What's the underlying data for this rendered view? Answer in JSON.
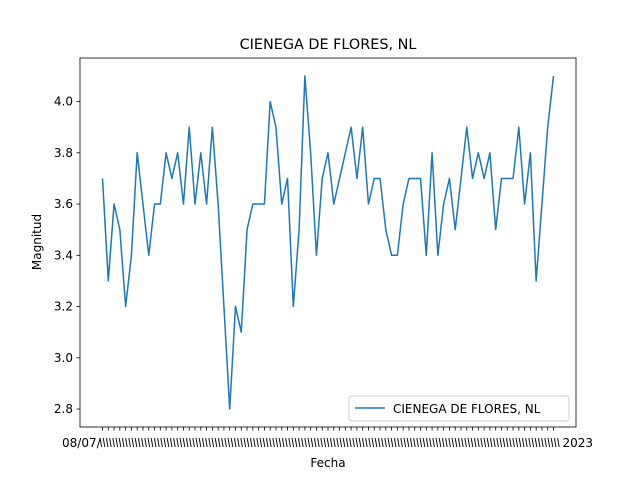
{
  "chart_data": {
    "type": "line",
    "title": "CIENEGA DE FLORES, NL",
    "xlabel": "Fecha",
    "ylabel": "Magnitud",
    "ylim": [
      2.73,
      4.17
    ],
    "yticks": [
      2.8,
      3.0,
      3.2,
      3.4,
      3.6,
      3.8,
      4.0
    ],
    "ytick_labels": [
      "2.8",
      "3.0",
      "3.2",
      "3.4",
      "3.6",
      "3.8",
      "4.0"
    ],
    "xtick_label_first": "08/07/",
    "xtick_label_last": "2023",
    "grid": false,
    "legend_location": "lower right",
    "series": [
      {
        "name": "CIENEGA DE FLORES, NL",
        "color": "#1f77b4",
        "values": [
          3.7,
          3.3,
          3.6,
          3.5,
          3.2,
          3.4,
          3.8,
          3.6,
          3.4,
          3.6,
          3.6,
          3.8,
          3.7,
          3.8,
          3.6,
          3.9,
          3.6,
          3.8,
          3.6,
          3.9,
          3.6,
          3.2,
          2.8,
          3.2,
          3.1,
          3.5,
          3.6,
          3.6,
          3.6,
          4.0,
          3.9,
          3.6,
          3.7,
          3.2,
          3.5,
          4.1,
          3.8,
          3.4,
          3.7,
          3.8,
          3.6,
          3.7,
          3.8,
          3.9,
          3.7,
          3.9,
          3.6,
          3.7,
          3.7,
          3.5,
          3.4,
          3.4,
          3.6,
          3.7,
          3.7,
          3.7,
          3.4,
          3.8,
          3.4,
          3.6,
          3.7,
          3.5,
          3.7,
          3.9,
          3.7,
          3.8,
          3.7,
          3.8,
          3.5,
          3.7,
          3.7,
          3.7,
          3.9,
          3.6,
          3.8,
          3.3,
          3.6,
          3.9,
          4.1
        ]
      }
    ]
  }
}
